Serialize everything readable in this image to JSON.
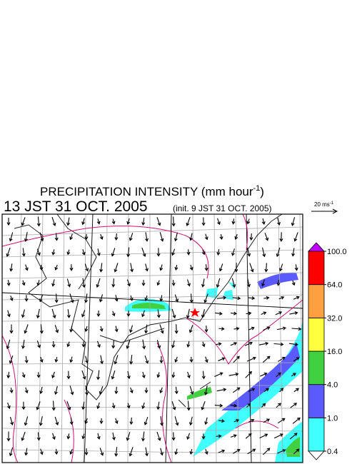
{
  "title": {
    "text": "PRECIPITATION INTENSITY (mm hour",
    "superscript": "-1",
    "suffix": ")"
  },
  "valid_time": "13 JST 31 OCT. 2005",
  "init": "(init. 9 JST 31 OCT. 2005)",
  "reference_vector": {
    "label": "20 ms",
    "superscript": "-1"
  },
  "colorbar": {
    "ticks": [
      {
        "value": 0.4,
        "label": "0.4"
      },
      {
        "value": 1,
        "label": "1.0"
      },
      {
        "value": 4,
        "label": "4.0"
      },
      {
        "value": 16,
        "label": "16.0"
      },
      {
        "value": 32,
        "label": "32.0"
      },
      {
        "value": 64,
        "label": "64.0"
      },
      {
        "value": 100,
        "label": "100.0"
      }
    ],
    "colors": [
      "#40ffff",
      "#5a5aff",
      "#40d040",
      "#ffff40",
      "#ffa040",
      "#ff0000"
    ],
    "over_color": "#c000ff",
    "under_color": "#ffffff"
  }
}
